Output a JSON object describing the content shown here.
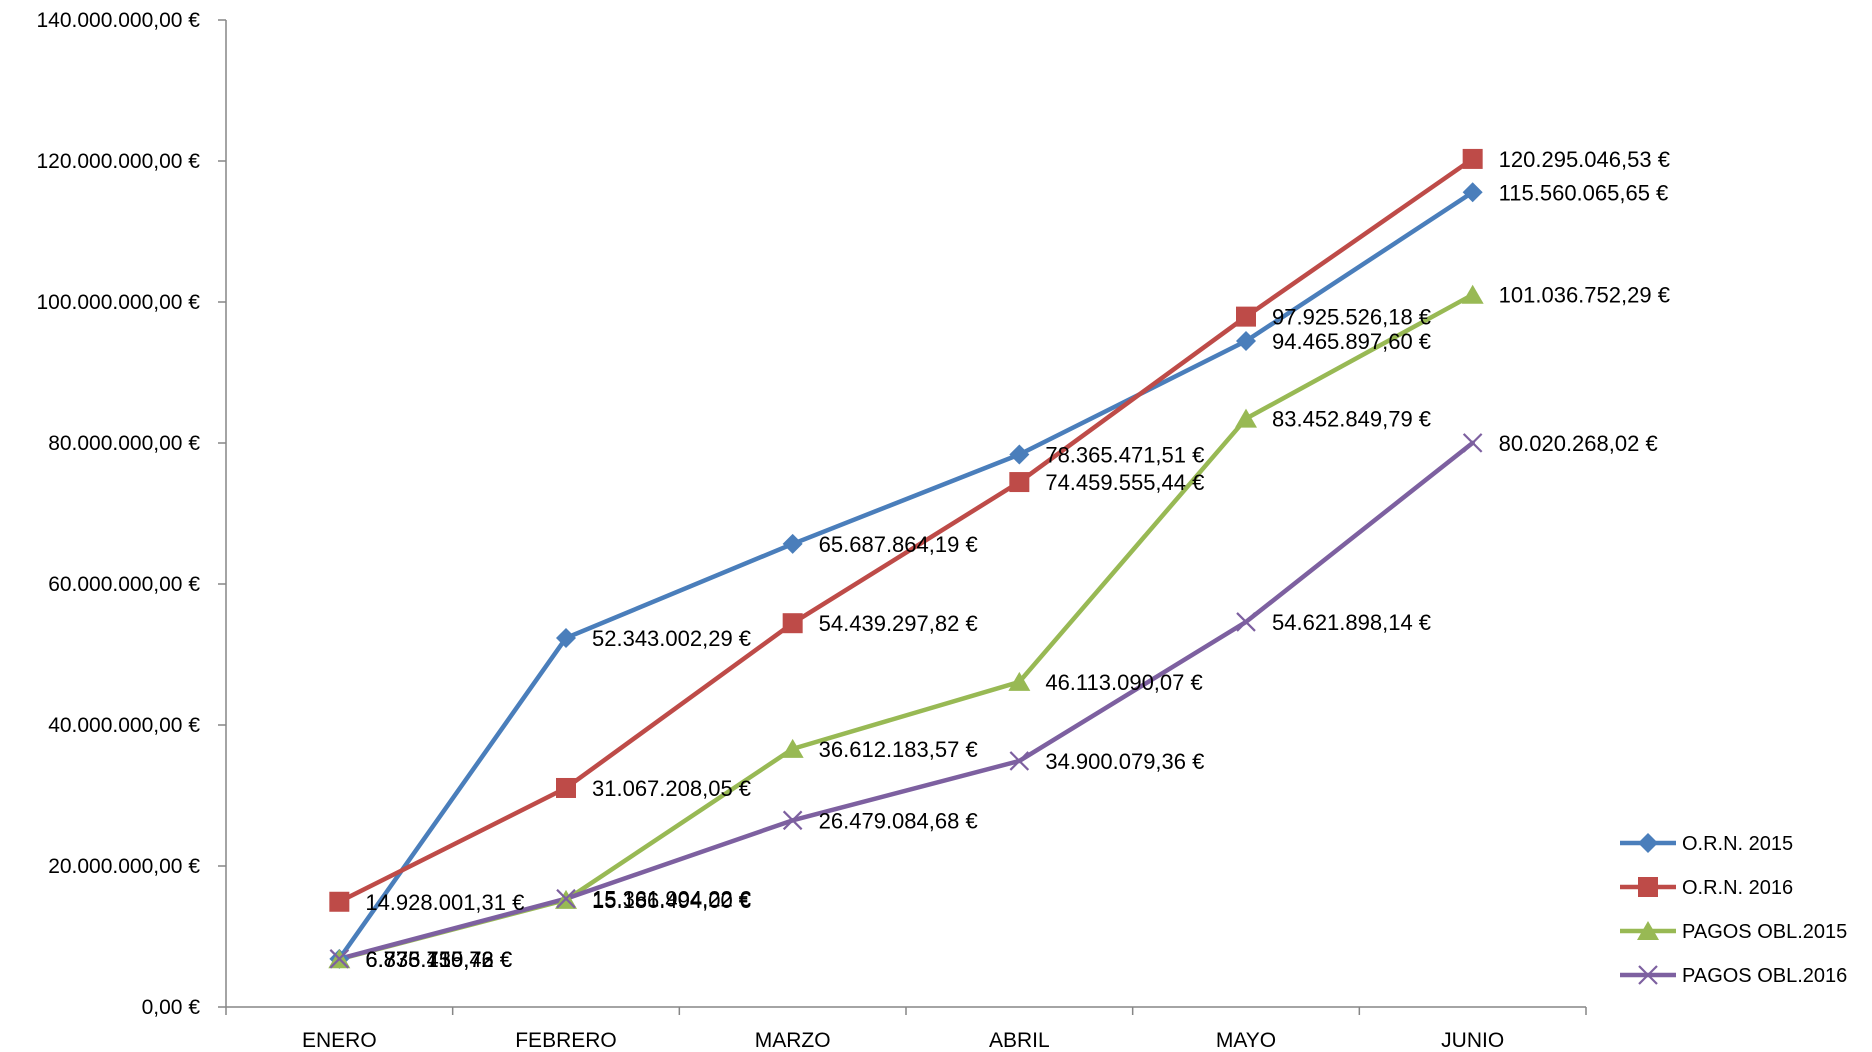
{
  "chart_data": {
    "type": "line",
    "title": "",
    "xlabel": "",
    "ylabel": "",
    "categories": [
      "ENERO",
      "FEBRERO",
      "MARZO",
      "ABRIL",
      "MAYO",
      "JUNIO"
    ],
    "ylim": [
      0,
      140000000
    ],
    "yticks": [
      "0,00 €",
      "20.000.000,00 €",
      "40.000.000,00 €",
      "60.000.000,00 €",
      "80.000.000,00 €",
      "100.000.000,00 €",
      "120.000.000,00 €",
      "140.000.000,00 €"
    ],
    "grid": false,
    "legend_position": "bottom-right",
    "series": [
      {
        "name": "O.R.N. 2015",
        "color": "#4a7ebb",
        "marker": "diamond",
        "values": [
          6833459.43,
          52343002.29,
          65687864.19,
          78365471.51,
          94465897.6,
          115560065.65
        ],
        "labels": [
          "6.833.459,43 €",
          "52.343.002,29 €",
          "65.687.864,19 €",
          "78.365.471,51 €",
          "94.465.897,60 €",
          "115.560.065,65 €"
        ]
      },
      {
        "name": "O.R.N. 2016",
        "color": "#be4b48",
        "marker": "square",
        "values": [
          14928001.31,
          31067208.05,
          54439297.82,
          74459555.44,
          97925526.18,
          120295046.53
        ],
        "labels": [
          "14.928.001,31 €",
          "31.067.208,05 €",
          "54.439.297,82 €",
          "74.459.555,44 €",
          "97.925.526,18 €",
          "120.295.046,53 €"
        ]
      },
      {
        "name": "PAGOS OBL.2015",
        "color": "#98b954",
        "marker": "triangle",
        "values": [
          6776715.76,
          15186494.0,
          36612183.57,
          46113090.07,
          83452849.79,
          101036752.29
        ],
        "labels": [
          "6.776.715,76 €",
          "15.186.494,00 €",
          "36.612.183,57 €",
          "46.113.090,07 €",
          "83.452.849,79 €",
          "101.036.752,29 €"
        ]
      },
      {
        "name": "PAGOS OBL.2016",
        "color": "#7d60a0",
        "marker": "x",
        "values": [
          6835130.72,
          15361904.22,
          26479084.68,
          34900079.36,
          54621898.14,
          80020268.02
        ],
        "labels": [
          "6.835.130,72 €",
          "15.361.904,22 €",
          "26.479.084,68 €",
          "34.900.079,36 €",
          "54.621.898,14 €",
          "80.020.268,02 €"
        ]
      }
    ]
  }
}
